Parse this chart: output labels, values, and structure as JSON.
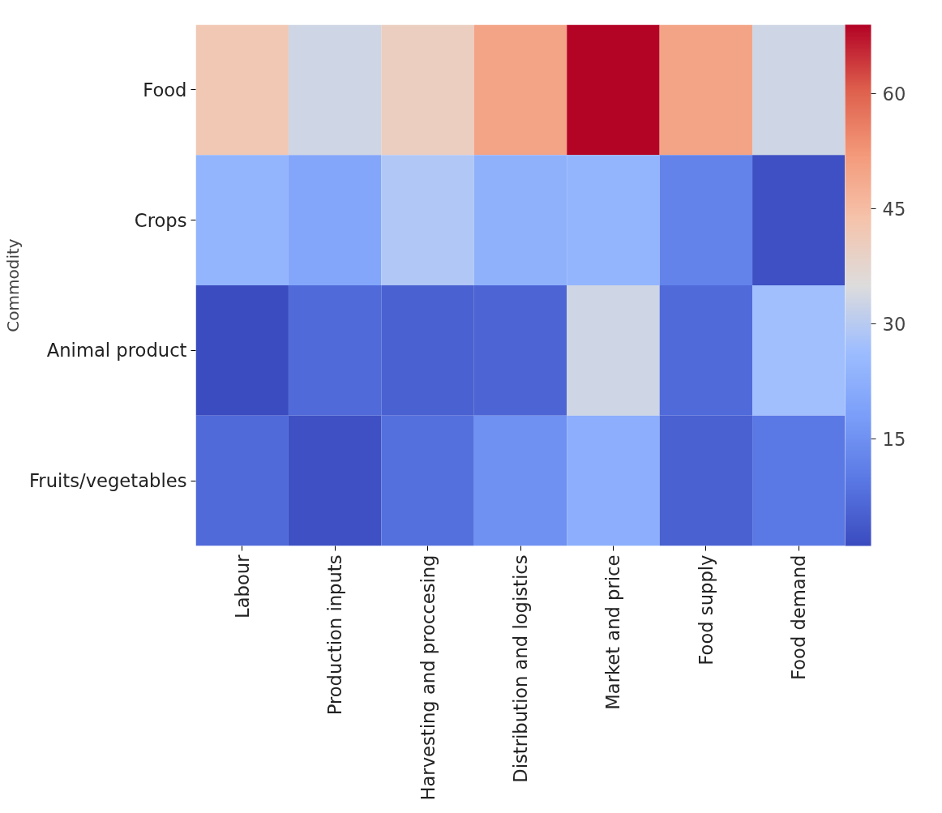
{
  "chart_data": {
    "type": "heatmap",
    "ylabel": "Commodity",
    "categories": [
      "Labour",
      "Production inputs",
      "Harvesting and proccesing",
      "Distribution and logistics",
      "Market and price",
      "Food supply",
      "Food demand"
    ],
    "y_categories": [
      "Food",
      "Crops",
      "Animal product",
      "Fruits/vegetables"
    ],
    "cells": [
      [
        42,
        33,
        40,
        50,
        69,
        50,
        33
      ],
      [
        24,
        20,
        29,
        23,
        24,
        12,
        2
      ],
      [
        1,
        7,
        5,
        6,
        33,
        7,
        27
      ],
      [
        7,
        2,
        8,
        15,
        22,
        5,
        10
      ]
    ],
    "clim": [
      1,
      69
    ],
    "cticks": [
      15,
      30,
      45,
      60
    ]
  }
}
